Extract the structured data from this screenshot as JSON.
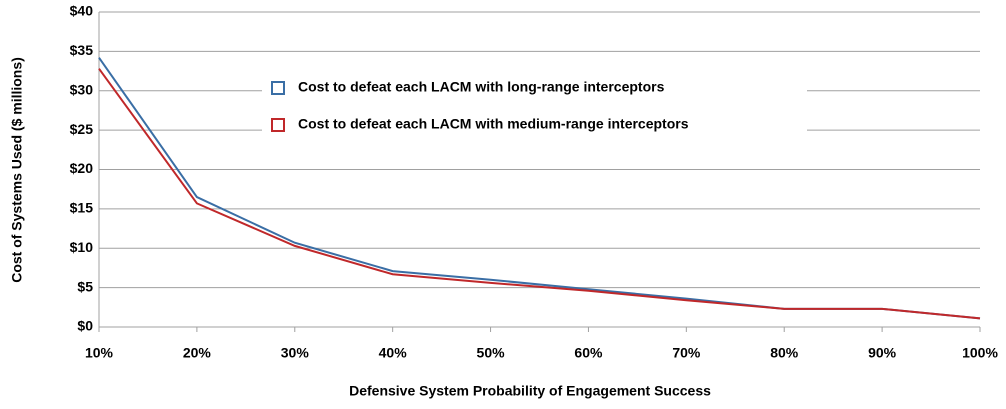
{
  "chart_data": {
    "type": "line",
    "xlabel": "Defensive System Probability of Engagement Success",
    "ylabel": "Cost of Systems Used ($ millions)",
    "categories": [
      "10%",
      "20%",
      "30%",
      "40%",
      "50%",
      "60%",
      "70%",
      "80%",
      "90%",
      "100%"
    ],
    "series": [
      {
        "name": "Cost to defeat each LACM with long-range interceptors",
        "color": "#3a6ea5",
        "values": [
          34.2,
          16.5,
          10.7,
          7.1,
          6.0,
          4.8,
          3.6,
          2.3,
          2.3,
          1.1
        ]
      },
      {
        "name": "Cost to defeat each LACM with medium-range interceptors",
        "color": "#c0282a",
        "values": [
          32.8,
          15.7,
          10.3,
          6.7,
          5.6,
          4.6,
          3.4,
          2.3,
          2.3,
          1.1
        ]
      }
    ],
    "ylim": [
      0,
      40
    ],
    "yticks": [
      {
        "value": 0,
        "label": "$0"
      },
      {
        "value": 5,
        "label": "$5"
      },
      {
        "value": 10,
        "label": "$10"
      },
      {
        "value": 15,
        "label": "$15"
      },
      {
        "value": 20,
        "label": "$20"
      },
      {
        "value": 25,
        "label": "$25"
      },
      {
        "value": 30,
        "label": "$30"
      },
      {
        "value": 35,
        "label": "$35"
      },
      {
        "value": 40,
        "label": "$40"
      }
    ],
    "grid": true,
    "legend": "upper center"
  }
}
